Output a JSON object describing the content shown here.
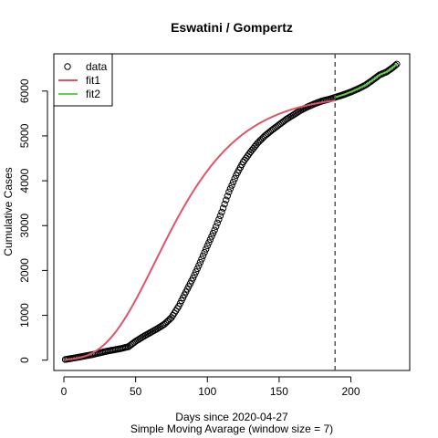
{
  "chart_data": {
    "type": "scatter",
    "title": "Eswatini / Gompertz",
    "xlabel": "Days since 2020-04-27",
    "subtitle": "Simple Moving Avarage (window size = 7)",
    "ylabel": "Cumulative Cases",
    "xlim": [
      -7,
      241
    ],
    "ylim": [
      -230,
      6830
    ],
    "x_ticks": [
      0,
      50,
      100,
      150,
      200
    ],
    "y_ticks": [
      0,
      1000,
      2000,
      3000,
      4000,
      5000,
      6000
    ],
    "vline_x": 189,
    "legend": {
      "placement": "top-left",
      "entries": [
        "data",
        "fit1",
        "fit2"
      ]
    },
    "colors": {
      "data": "#000000",
      "fit1": "#DF536B",
      "fit2": "#61D04F",
      "vline": "#555555"
    },
    "data_x_range": [
      1,
      232
    ],
    "data_anchors": [
      [
        1,
        15
      ],
      [
        10,
        65
      ],
      [
        20,
        125
      ],
      [
        30,
        200
      ],
      [
        40,
        260
      ],
      [
        45,
        300
      ],
      [
        50,
        420
      ],
      [
        55,
        520
      ],
      [
        60,
        610
      ],
      [
        65,
        700
      ],
      [
        70,
        800
      ],
      [
        75,
        950
      ],
      [
        80,
        1200
      ],
      [
        85,
        1520
      ],
      [
        90,
        1830
      ],
      [
        95,
        2180
      ],
      [
        100,
        2550
      ],
      [
        105,
        2900
      ],
      [
        110,
        3300
      ],
      [
        115,
        3750
      ],
      [
        120,
        4120
      ],
      [
        125,
        4420
      ],
      [
        130,
        4640
      ],
      [
        135,
        4840
      ],
      [
        140,
        5000
      ],
      [
        145,
        5130
      ],
      [
        150,
        5250
      ],
      [
        155,
        5370
      ],
      [
        160,
        5470
      ],
      [
        165,
        5570
      ],
      [
        170,
        5650
      ],
      [
        175,
        5720
      ],
      [
        180,
        5780
      ],
      [
        185,
        5820
      ],
      [
        189,
        5860
      ],
      [
        195,
        5920
      ],
      [
        200,
        5980
      ],
      [
        205,
        6050
      ],
      [
        210,
        6130
      ],
      [
        215,
        6240
      ],
      [
        220,
        6360
      ],
      [
        225,
        6430
      ],
      [
        229,
        6520
      ],
      [
        232,
        6600
      ]
    ],
    "fit1_params": {
      "a": 5935,
      "b": 6.5,
      "c": 0.0295
    },
    "fit1_range": [
      1,
      189
    ],
    "fit2_range": [
      189,
      232
    ]
  }
}
